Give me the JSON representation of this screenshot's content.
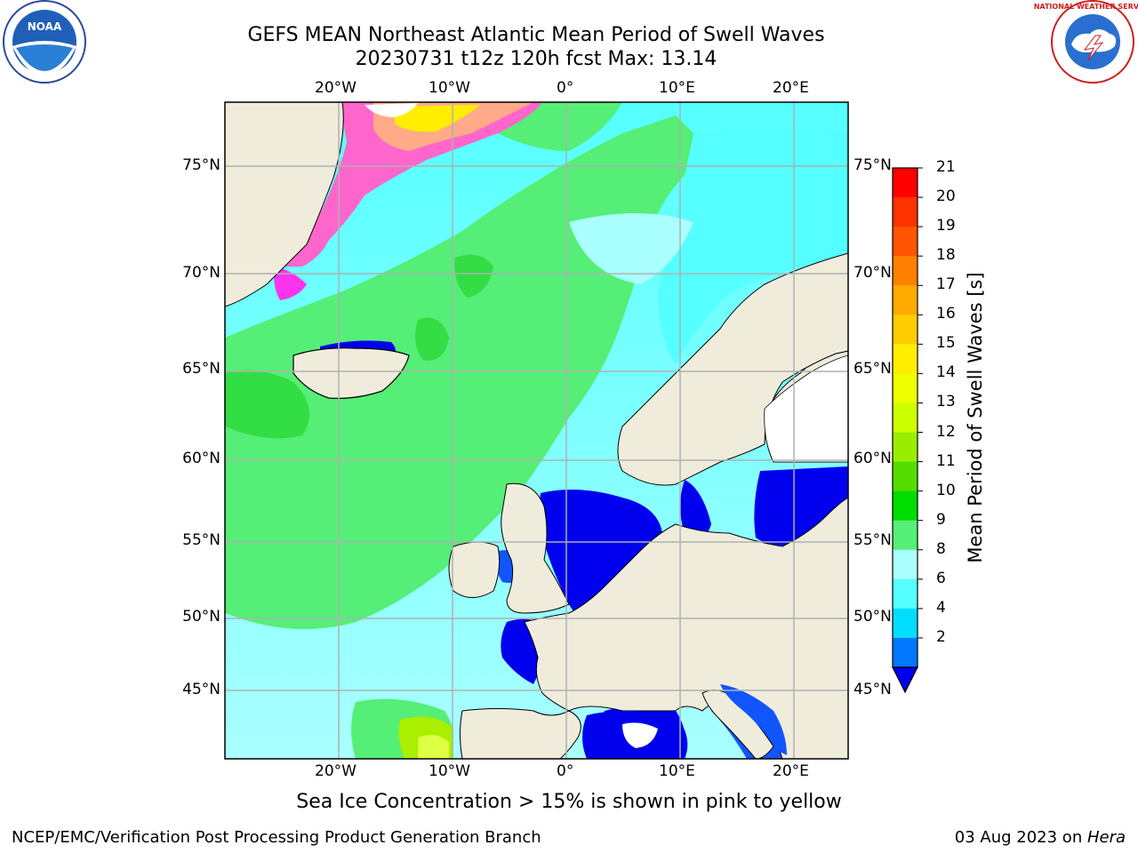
{
  "title_line1": "GEFS MEAN Northeast Atlantic Mean Period of Swell Waves",
  "title_line2": "20230731 t12z 120h fcst   Max: 13.14",
  "map": {
    "lon_labels": [
      "20°W",
      "10°W",
      "0°",
      "10°E",
      "20°E"
    ],
    "lat_labels": [
      "75°N",
      "70°N",
      "65°N",
      "60°N",
      "55°N",
      "50°N",
      "45°N"
    ],
    "land_color": "#efecdc",
    "grid_color": "#b0b0b0"
  },
  "colorbar": {
    "title": "Mean Period of Swell Waves [s]",
    "ticks": [
      "21",
      "20",
      "19",
      "18",
      "17",
      "16",
      "15",
      "14",
      "13",
      "12",
      "11",
      "10",
      "9",
      "8",
      "6",
      "4",
      "2"
    ],
    "colors_top_to_bottom": [
      "#ff0000",
      "#ff3300",
      "#ff5500",
      "#ff8000",
      "#ffaa00",
      "#ffcc00",
      "#ffee00",
      "#eeff00",
      "#ccff00",
      "#99ee00",
      "#55dd00",
      "#00dd00",
      "#55ee77",
      "#aaffff",
      "#55ffff",
      "#00ddff",
      "#0077ff"
    ],
    "under_color": "#0000ee"
  },
  "note": "Sea Ice Concentration > 15% is shown in pink to yellow",
  "footer_left": "NCEP/EMC/Verification Post Processing Product Generation Branch",
  "footer_right_prefix": "03 Aug 2023 on ",
  "footer_right_host": "Hera",
  "logos": {
    "noaa_text": "NOAA",
    "nws_text": "NATIONAL WEATHER SERVICE"
  }
}
